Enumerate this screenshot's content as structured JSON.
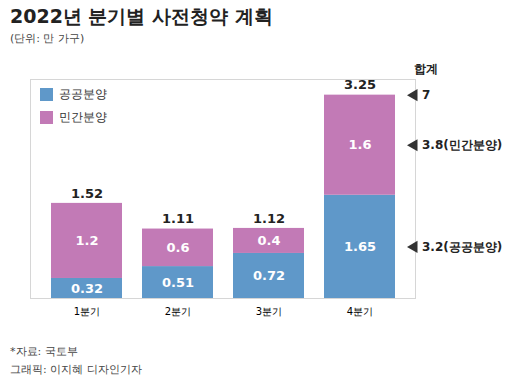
{
  "chart_data": {
    "type": "bar",
    "title": "2022년 분기별 사전청약 계획",
    "subtitle": "(단위: 만 가구)",
    "categories": [
      "1분기",
      "2분기",
      "3분기",
      "4분기"
    ],
    "series": [
      {
        "name": "공공분양",
        "color": "#5f98c9",
        "values": [
          0.32,
          0.51,
          0.72,
          1.65
        ]
      },
      {
        "name": "민간분양",
        "color": "#c27ab6",
        "values": [
          1.2,
          0.6,
          0.4,
          1.6
        ]
      }
    ],
    "totals": [
      1.52,
      1.11,
      1.12,
      3.25
    ],
    "stacked": true,
    "data_labels": true,
    "tick_labels": "x",
    "legend": "top-left",
    "ylim": [
      0,
      3.5
    ],
    "yticks": [],
    "sum_annotation": {
      "title": "합계",
      "total": 7,
      "series_totals": [
        {
          "series": "민간분양",
          "value": 3.8,
          "label": "3.8(민간분양)"
        },
        {
          "series": "공공분양",
          "value": 3.2,
          "label": "3.2(공공분양)"
        }
      ]
    },
    "source": "*자료: 국토부",
    "credit": "그래픽: 이지혜 디자인기자"
  }
}
